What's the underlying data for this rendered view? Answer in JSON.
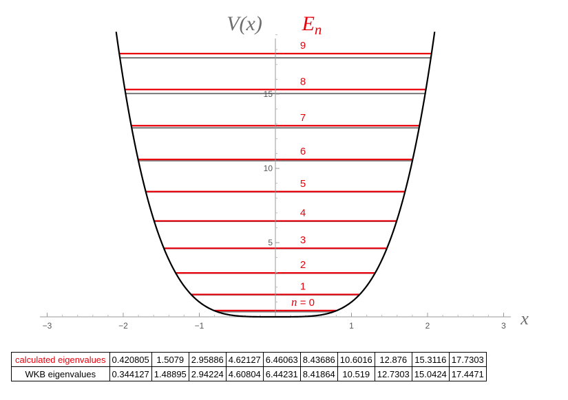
{
  "chart_data": {
    "type": "line",
    "potential_label": "V(x)",
    "energy_label": "E",
    "energy_label_sub": "n",
    "xlabel": "x",
    "xlim": [
      -3.1,
      3.1
    ],
    "ylim": [
      -0.4,
      19.2
    ],
    "x_ticks": [
      "−3",
      "−2",
      "−1",
      "1",
      "2",
      "3"
    ],
    "y_ticks": [
      "5",
      "10",
      "15"
    ],
    "potential": "x^4",
    "colors": {
      "potential": "#000000",
      "calculated": "#e8000b",
      "wkb": "#808080",
      "label_potential": "#6e6e6e"
    },
    "level_labels": [
      "n = 0",
      "1",
      "2",
      "3",
      "4",
      "5",
      "6",
      "7",
      "8",
      "9"
    ],
    "series": [
      {
        "name": "calculated eigenvalues",
        "values": [
          0.420805,
          1.5079,
          2.95886,
          4.62127,
          6.46063,
          8.43686,
          10.6016,
          12.876,
          15.3116,
          17.7303
        ]
      },
      {
        "name": "WKB eigenvalues",
        "values": [
          0.344127,
          1.48895,
          2.94224,
          4.60804,
          6.44231,
          8.41864,
          10.519,
          12.7303,
          15.0424,
          17.4471
        ]
      }
    ]
  },
  "table": {
    "rows": [
      {
        "label": "calculated eigenvalues",
        "values": [
          "0.420805",
          "1.5079",
          "2.95886",
          "4.62127",
          "6.46063",
          "8.43686",
          "10.6016",
          "12.876",
          "15.3116",
          "17.7303"
        ]
      },
      {
        "label": "WKB eigenvalues",
        "values": [
          "0.344127",
          "1.48895",
          "2.94224",
          "4.60804",
          "6.44231",
          "8.41864",
          "10.519",
          "12.7303",
          "15.0424",
          "17.4471"
        ]
      }
    ]
  }
}
